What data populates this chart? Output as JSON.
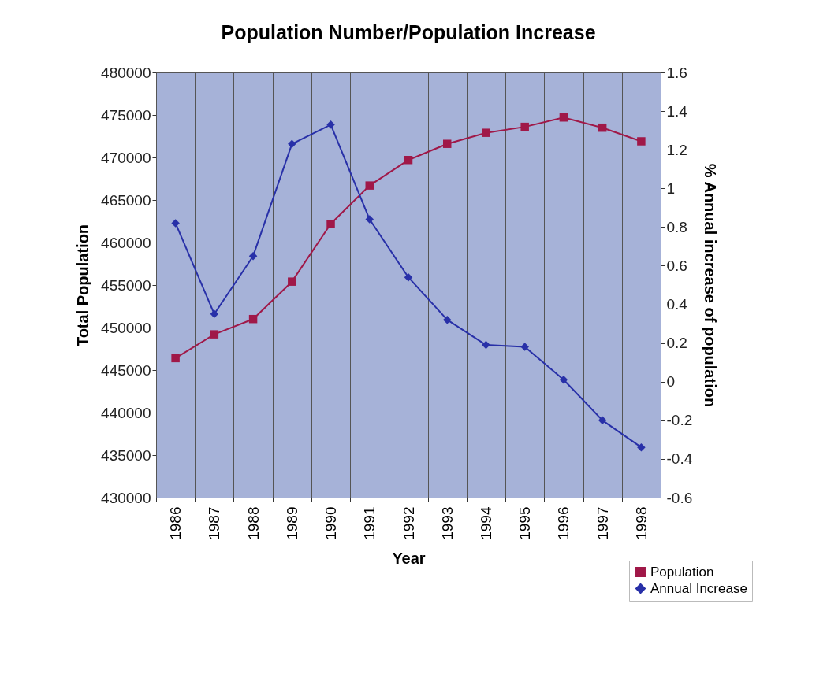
{
  "chart_data": {
    "type": "line",
    "title": "Population Number/Population Increase",
    "xlabel": "Year",
    "ylabel": "Total Population",
    "y2label": "% Annual increase of population",
    "categories": [
      "1986",
      "1987",
      "1988",
      "1989",
      "1990",
      "1991",
      "1992",
      "1993",
      "1994",
      "1995",
      "1996",
      "1997",
      "1998"
    ],
    "series": [
      {
        "name": "Population",
        "color": "#a01848",
        "marker": "square",
        "values": [
          446400,
          449200,
          451000,
          455400,
          462200,
          466700,
          469700,
          471600,
          472900,
          473600,
          474700,
          473500,
          471900
        ]
      },
      {
        "name": "Annual Increase",
        "color": "#2830a8",
        "marker": "diamond",
        "axis": "y2",
        "values": [
          0.82,
          0.35,
          0.65,
          1.23,
          1.33,
          0.84,
          0.54,
          0.32,
          0.19,
          0.18,
          0.01,
          -0.2,
          -0.34
        ]
      }
    ],
    "ylim": [
      430000,
      480000
    ],
    "yticks": [
      430000,
      435000,
      440000,
      445000,
      450000,
      455000,
      460000,
      465000,
      470000,
      475000,
      480000
    ],
    "y2lim": [
      -0.6,
      1.6
    ],
    "y2ticks": [
      -0.6,
      -0.4,
      -0.2,
      0,
      0.2,
      0.4,
      0.6,
      0.8,
      1,
      1.2,
      1.4,
      1.6
    ],
    "grid": "x",
    "legend": "bottom right"
  }
}
